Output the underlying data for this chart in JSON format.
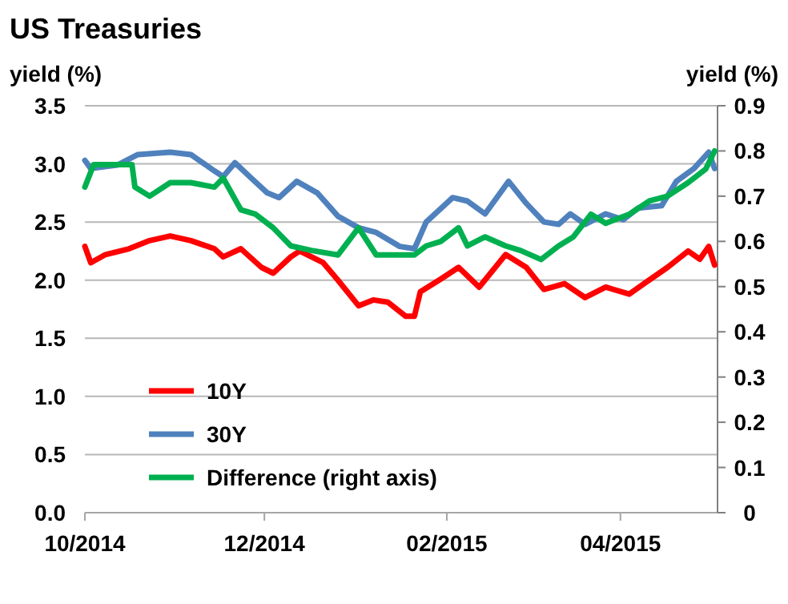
{
  "chart_data": {
    "type": "line",
    "title": "US Treasuries",
    "ylabel": "yield (%)",
    "y2label": "yield (%)",
    "xlim": [
      "2014-10-01",
      "2015-05-04"
    ],
    "xticks": [
      {
        "value": "2014-10-01",
        "label": "10/2014"
      },
      {
        "value": "2014-12-01",
        "label": "12/2014"
      },
      {
        "value": "2015-02-01",
        "label": "02/2015"
      },
      {
        "value": "2015-04-01",
        "label": "04/2015"
      }
    ],
    "ylim": [
      0,
      3.5
    ],
    "yticks": [
      {
        "value": 0,
        "label": "0.0"
      },
      {
        "value": 0.5,
        "label": "0.5"
      },
      {
        "value": 1,
        "label": "1.0"
      },
      {
        "value": 1.5,
        "label": "1.5"
      },
      {
        "value": 2,
        "label": "2.0"
      },
      {
        "value": 2.5,
        "label": "2.5"
      },
      {
        "value": 3,
        "label": "3.0"
      },
      {
        "value": 3.5,
        "label": "3.5"
      }
    ],
    "y2lim": [
      0,
      0.9
    ],
    "y2ticks": [
      0,
      0.1,
      0.2,
      0.3,
      0.4,
      0.5,
      0.6,
      0.7,
      0.8,
      0.9
    ],
    "grid": "y",
    "legend": "bottom left",
    "marker": "none",
    "line_style": "solid",
    "series": [
      {
        "name": "10Y",
        "color": "#ff0000",
        "x": [
          "2014-10-01",
          "2014-10-03",
          "2014-10-08",
          "2014-10-16",
          "2014-10-23",
          "2014-10-30",
          "2014-11-06",
          "2014-11-14",
          "2014-11-17",
          "2014-11-23",
          "2014-11-30",
          "2014-12-04",
          "2014-12-10",
          "2014-12-13",
          "2014-12-21",
          "2014-12-26",
          "2015-01-02",
          "2015-01-07",
          "2015-01-12",
          "2015-01-18",
          "2015-01-21",
          "2015-01-23",
          "2015-01-30",
          "2015-02-05",
          "2015-02-12",
          "2015-02-21",
          "2015-02-28",
          "2015-03-06",
          "2015-03-13",
          "2015-03-20",
          "2015-03-27",
          "2015-04-04",
          "2015-04-09",
          "2015-04-17",
          "2015-04-24",
          "2015-04-28",
          "2015-05-01",
          "2015-05-03"
        ],
        "values": [
          2.29,
          2.15,
          2.22,
          2.27,
          2.34,
          2.38,
          2.34,
          2.27,
          2.2,
          2.27,
          2.11,
          2.06,
          2.2,
          2.25,
          2.15,
          2.0,
          1.78,
          1.83,
          1.81,
          1.69,
          1.69,
          1.9,
          2.01,
          2.11,
          1.94,
          2.22,
          2.11,
          1.92,
          1.97,
          1.85,
          1.94,
          1.88,
          1.97,
          2.11,
          2.25,
          2.18,
          2.29,
          2.13
        ]
      },
      {
        "name": "30Y",
        "color": "#4f81bd",
        "x": [
          "2014-10-01",
          "2014-10-03",
          "2014-10-12",
          "2014-10-19",
          "2014-10-30",
          "2014-11-06",
          "2014-11-14",
          "2014-11-17",
          "2014-11-21",
          "2014-11-26",
          "2014-12-02",
          "2014-12-06",
          "2014-12-12",
          "2014-12-19",
          "2014-12-26",
          "2015-01-02",
          "2015-01-08",
          "2015-01-16",
          "2015-01-21",
          "2015-01-25",
          "2015-02-03",
          "2015-02-08",
          "2015-02-14",
          "2015-02-22",
          "2015-02-28",
          "2015-03-06",
          "2015-03-11",
          "2015-03-15",
          "2015-03-20",
          "2015-03-27",
          "2015-04-02",
          "2015-04-07",
          "2015-04-15",
          "2015-04-20",
          "2015-04-26",
          "2015-05-01",
          "2015-05-03"
        ],
        "values": [
          3.03,
          2.96,
          2.99,
          3.08,
          3.1,
          3.08,
          2.94,
          2.89,
          3.01,
          2.89,
          2.75,
          2.71,
          2.85,
          2.75,
          2.55,
          2.45,
          2.41,
          2.29,
          2.27,
          2.5,
          2.71,
          2.68,
          2.57,
          2.85,
          2.66,
          2.5,
          2.48,
          2.57,
          2.48,
          2.57,
          2.52,
          2.62,
          2.64,
          2.85,
          2.96,
          3.1,
          2.96
        ]
      },
      {
        "name": "Difference (right axis)",
        "color": "#00b050",
        "axis": "y2",
        "x": [
          "2014-10-01",
          "2014-10-04",
          "2014-10-12",
          "2014-10-17",
          "2014-10-18",
          "2014-10-23",
          "2014-10-30",
          "2014-11-06",
          "2014-11-14",
          "2014-11-17",
          "2014-11-23",
          "2014-11-28",
          "2014-12-04",
          "2014-12-10",
          "2014-12-17",
          "2014-12-26",
          "2015-01-02",
          "2015-01-08",
          "2015-01-21",
          "2015-01-25",
          "2015-01-30",
          "2015-02-05",
          "2015-02-08",
          "2015-02-14",
          "2015-02-21",
          "2015-02-26",
          "2015-03-05",
          "2015-03-11",
          "2015-03-16",
          "2015-03-22",
          "2015-03-27",
          "2015-04-04",
          "2015-04-11",
          "2015-04-17",
          "2015-04-24",
          "2015-04-30",
          "2015-05-03"
        ],
        "values": [
          0.72,
          0.77,
          0.77,
          0.77,
          0.72,
          0.7,
          0.73,
          0.73,
          0.72,
          0.74,
          0.67,
          0.66,
          0.63,
          0.59,
          0.58,
          0.57,
          0.63,
          0.57,
          0.57,
          0.59,
          0.6,
          0.63,
          0.59,
          0.61,
          0.59,
          0.58,
          0.56,
          0.59,
          0.61,
          0.66,
          0.64,
          0.66,
          0.69,
          0.7,
          0.73,
          0.76,
          0.8
        ]
      }
    ]
  }
}
